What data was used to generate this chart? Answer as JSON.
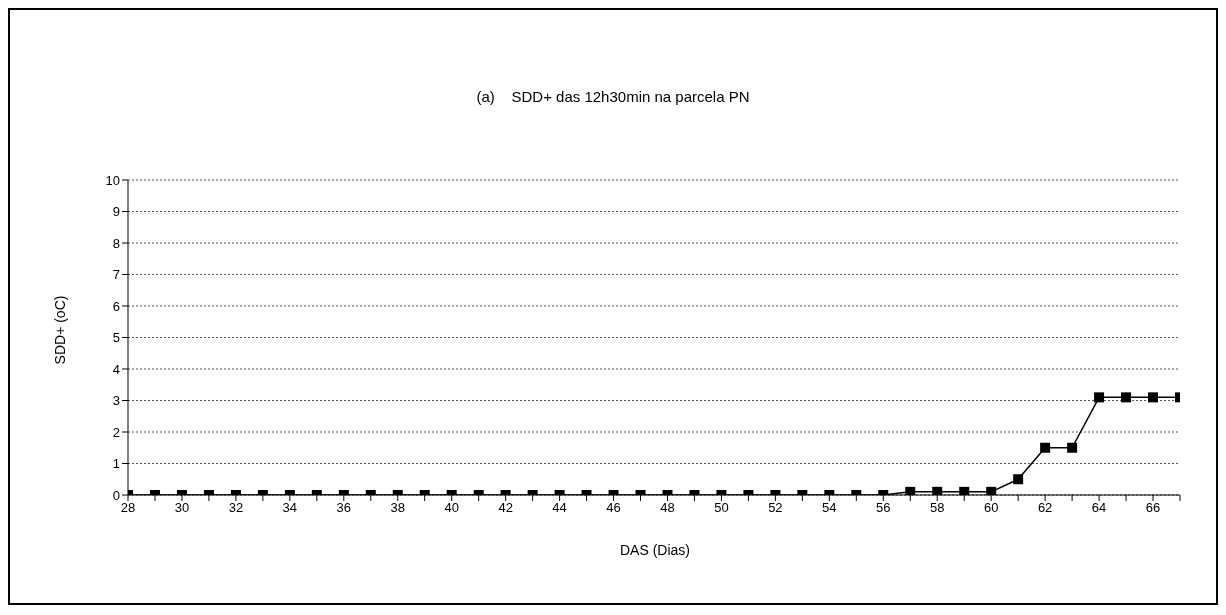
{
  "chart_data": {
    "type": "line",
    "title": "(a)    SDD+ das 12h30min na parcela PN",
    "xlabel": "DAS (Dias)",
    "ylabel": "SDD+ (oC)",
    "x": [
      28,
      29,
      30,
      31,
      32,
      33,
      34,
      35,
      36,
      37,
      38,
      39,
      40,
      41,
      42,
      43,
      44,
      45,
      46,
      47,
      48,
      49,
      50,
      51,
      52,
      53,
      54,
      55,
      56,
      57,
      58,
      59,
      60,
      61,
      62,
      63,
      64,
      65,
      66,
      67
    ],
    "series": [
      {
        "color": "#000000",
        "values": [
          0,
          0,
          0,
          0,
          0,
          0,
          0,
          0,
          0,
          0,
          0,
          0,
          0,
          0,
          0,
          0,
          0,
          0,
          0,
          0,
          0,
          0,
          0,
          0,
          0,
          0,
          0,
          0,
          0,
          0.1,
          0.1,
          0.1,
          0.1,
          0.5,
          1.5,
          1.5,
          3.1,
          3.1,
          3.1,
          3.1
        ]
      }
    ],
    "xlim": [
      28,
      67
    ],
    "xticks": [
      28,
      {
        "value": 29,
        "label": null
      },
      30,
      {
        "value": 31,
        "label": null
      },
      32,
      {
        "value": 33,
        "label": null
      },
      34,
      {
        "value": 35,
        "label": null
      },
      36,
      {
        "value": 37,
        "label": null
      },
      38,
      {
        "value": 39,
        "label": null
      },
      40,
      {
        "value": 41,
        "label": null
      },
      42,
      {
        "value": 43,
        "label": null
      },
      44,
      {
        "value": 45,
        "label": null
      },
      46,
      {
        "value": 47,
        "label": null
      },
      48,
      {
        "value": 49,
        "label": null
      },
      50,
      {
        "value": 51,
        "label": null
      },
      52,
      {
        "value": 53,
        "label": null
      },
      54,
      {
        "value": 55,
        "label": null
      },
      56,
      {
        "value": 57,
        "label": null
      },
      58,
      {
        "value": 59,
        "label": null
      },
      60,
      {
        "value": 61,
        "label": null
      },
      62,
      {
        "value": 63,
        "label": null
      },
      64,
      {
        "value": 65,
        "label": null
      },
      66,
      {
        "value": 67,
        "label": null
      }
    ],
    "ylim": [
      0,
      10
    ],
    "yticks": [
      0,
      1,
      2,
      3,
      4,
      5,
      6,
      7,
      8,
      9,
      10
    ],
    "grid": "y",
    "marker": "square",
    "line_style": "solid"
  }
}
